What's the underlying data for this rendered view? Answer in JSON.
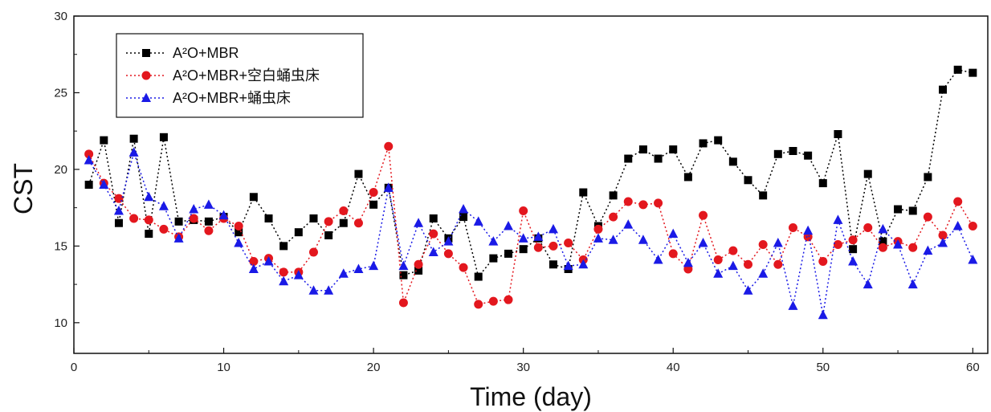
{
  "chart_data": {
    "type": "line",
    "xlabel": "Time (day)",
    "ylabel": "CST",
    "xlim": [
      0,
      61
    ],
    "ylim": [
      8,
      30
    ],
    "xticks": [
      0,
      10,
      20,
      30,
      40,
      50,
      60
    ],
    "yticks": [
      10,
      15,
      20,
      25,
      30
    ],
    "grid": false,
    "legend_position": "top-left",
    "x": [
      1,
      2,
      3,
      4,
      5,
      6,
      7,
      8,
      9,
      10,
      11,
      12,
      13,
      14,
      15,
      16,
      17,
      18,
      19,
      20,
      21,
      22,
      23,
      24,
      25,
      26,
      27,
      28,
      29,
      30,
      31,
      32,
      33,
      34,
      35,
      36,
      37,
      38,
      39,
      40,
      41,
      42,
      43,
      44,
      45,
      46,
      47,
      48,
      49,
      50,
      51,
      52,
      53,
      54,
      55,
      56,
      57,
      58,
      59,
      60
    ],
    "series": [
      {
        "name": "A²O+MBR",
        "color": "#000000",
        "marker": "square",
        "values": [
          19.0,
          21.9,
          16.5,
          22.0,
          15.8,
          22.1,
          16.6,
          16.7,
          16.6,
          16.9,
          15.9,
          18.2,
          16.8,
          15.0,
          15.9,
          16.8,
          15.7,
          16.5,
          19.7,
          17.7,
          18.8,
          13.1,
          13.4,
          16.8,
          15.5,
          16.9,
          13.0,
          14.2,
          14.5,
          14.8,
          15.5,
          13.8,
          13.5,
          18.5,
          16.3,
          18.3,
          20.7,
          21.3,
          20.7,
          21.3,
          19.5,
          21.7,
          21.9,
          20.5,
          19.3,
          18.3,
          21.0,
          21.2,
          20.9,
          19.1,
          22.3,
          14.8,
          19.7,
          15.3,
          17.4,
          17.3,
          19.5,
          25.2,
          26.5,
          26.3
        ]
      },
      {
        "name": "A²O+MBR+空白蛹虫床",
        "color": "#e3171e",
        "marker": "circle",
        "values": [
          21.0,
          19.1,
          18.1,
          16.8,
          16.7,
          16.1,
          15.6,
          16.8,
          16.0,
          16.8,
          16.3,
          14.0,
          14.2,
          13.3,
          13.3,
          14.6,
          16.6,
          17.3,
          16.5,
          18.5,
          21.5,
          11.3,
          13.8,
          15.8,
          14.5,
          13.6,
          11.2,
          11.4,
          11.5,
          17.3,
          14.9,
          15.0,
          15.2,
          14.1,
          16.1,
          16.9,
          17.9,
          17.7,
          17.8,
          14.5,
          13.5,
          17.0,
          14.1,
          14.7,
          13.8,
          15.1,
          13.8,
          16.2,
          15.6,
          14.0,
          15.1,
          15.4,
          16.2,
          14.9,
          15.3,
          14.9,
          16.9,
          15.7,
          17.9,
          16.3
        ]
      },
      {
        "name": "A²O+MBR+蛹虫床",
        "color": "#1a1ae6",
        "marker": "triangle",
        "values": [
          20.6,
          19.0,
          17.3,
          21.1,
          18.2,
          17.6,
          15.5,
          17.4,
          17.7,
          17.0,
          15.2,
          13.5,
          14.0,
          12.7,
          13.1,
          12.1,
          12.1,
          13.2,
          13.5,
          13.7,
          18.8,
          13.7,
          16.5,
          14.6,
          15.3,
          17.4,
          16.6,
          15.3,
          16.3,
          15.5,
          15.6,
          16.1,
          13.7,
          13.8,
          15.5,
          15.4,
          16.4,
          15.4,
          14.1,
          15.8,
          13.9,
          15.2,
          13.2,
          13.7,
          12.1,
          13.2,
          15.2,
          11.1,
          16.0,
          10.5,
          16.7,
          14.0,
          12.5,
          16.1,
          15.1,
          12.5,
          14.7,
          15.2,
          16.3,
          14.1
        ]
      }
    ]
  }
}
